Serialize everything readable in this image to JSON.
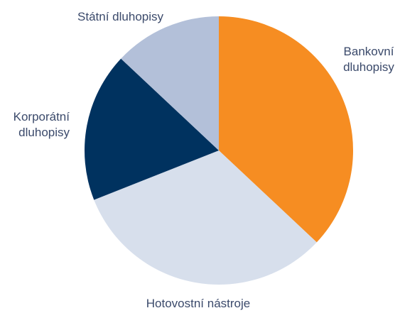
{
  "chart_data": {
    "type": "pie",
    "title": "",
    "legend": "none",
    "slices": [
      {
        "label_lines": [
          "Bankovní",
          "dluhopisy"
        ],
        "value": 37,
        "color": "#f68d22"
      },
      {
        "label_lines": [
          "Hotovostní nástroje"
        ],
        "value": 32,
        "color": "#d7dfec"
      },
      {
        "label_lines": [
          "Korporátní",
          "dluhopisy"
        ],
        "value": 18,
        "color": "#00325f"
      },
      {
        "label_lines": [
          "Státní dluhopisy"
        ],
        "value": 13,
        "color": "#b3c0d9"
      }
    ],
    "start": "12 o'clock",
    "direction": "clockwise"
  }
}
